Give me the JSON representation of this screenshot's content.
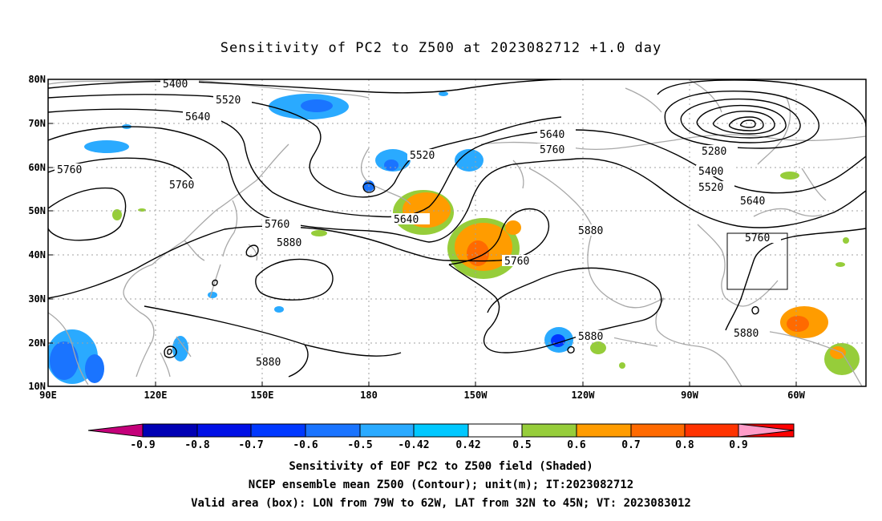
{
  "title": "Sensitivity of PC2 to Z500 at 2023082712 +1.0 day",
  "lon_ticks": [
    "90E",
    "120E",
    "150E",
    "180",
    "150W",
    "120W",
    "90W",
    "60W"
  ],
  "lat_ticks": [
    "80N",
    "70N",
    "60N",
    "50N",
    "40N",
    "30N",
    "20N",
    "10N"
  ],
  "contour_labels": [
    "5400",
    "5520",
    "5640",
    "5760",
    "5880",
    "5280"
  ],
  "colorbar": {
    "labels": [
      "-0.9",
      "-0.8",
      "-0.7",
      "-0.6",
      "-0.5",
      "-0.42",
      "0.42",
      "0.5",
      "0.6",
      "0.7",
      "0.8",
      "0.9"
    ],
    "colors": [
      "#c4007a",
      "#0000b4",
      "#0010e6",
      "#0038ff",
      "#1a74ff",
      "#2aaaff",
      "#00c8ff",
      "#ffffff",
      "#96cd3a",
      "#ff9c00",
      "#ff6a00",
      "#ff3300",
      "#ff0000",
      "#ff9cc8"
    ]
  },
  "caption": {
    "line1": "Sensitivity of EOF PC2 to Z500 field (Shaded)",
    "line2": "NCEP ensemble mean Z500 (Contour); unit(m); IT:2023082712",
    "line3": "Valid area (box): LON from 79W to 62W, LAT from 32N to 45N; VT: 2023083012"
  }
}
